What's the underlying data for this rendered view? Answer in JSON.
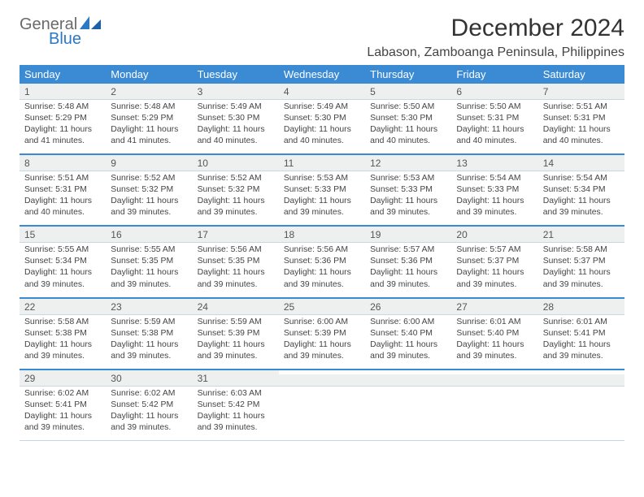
{
  "brand": {
    "word1": "General",
    "word2": "Blue"
  },
  "title": "December 2024",
  "location": "Labason, Zamboanga Peninsula, Philippines",
  "colors": {
    "header_bg": "#3b8bd4",
    "header_text": "#ffffff",
    "daynum_bg": "#eef0f0",
    "week_divider": "#3b8bd4",
    "body_text": "#444444",
    "logo_gray": "#6a6a6a",
    "logo_blue": "#2b78c5"
  },
  "weekdays": [
    "Sunday",
    "Monday",
    "Tuesday",
    "Wednesday",
    "Thursday",
    "Friday",
    "Saturday"
  ],
  "weeks": [
    [
      {
        "n": "1",
        "sr": "Sunrise: 5:48 AM",
        "ss": "Sunset: 5:29 PM",
        "d1": "Daylight: 11 hours",
        "d2": "and 41 minutes."
      },
      {
        "n": "2",
        "sr": "Sunrise: 5:48 AM",
        "ss": "Sunset: 5:29 PM",
        "d1": "Daylight: 11 hours",
        "d2": "and 41 minutes."
      },
      {
        "n": "3",
        "sr": "Sunrise: 5:49 AM",
        "ss": "Sunset: 5:30 PM",
        "d1": "Daylight: 11 hours",
        "d2": "and 40 minutes."
      },
      {
        "n": "4",
        "sr": "Sunrise: 5:49 AM",
        "ss": "Sunset: 5:30 PM",
        "d1": "Daylight: 11 hours",
        "d2": "and 40 minutes."
      },
      {
        "n": "5",
        "sr": "Sunrise: 5:50 AM",
        "ss": "Sunset: 5:30 PM",
        "d1": "Daylight: 11 hours",
        "d2": "and 40 minutes."
      },
      {
        "n": "6",
        "sr": "Sunrise: 5:50 AM",
        "ss": "Sunset: 5:31 PM",
        "d1": "Daylight: 11 hours",
        "d2": "and 40 minutes."
      },
      {
        "n": "7",
        "sr": "Sunrise: 5:51 AM",
        "ss": "Sunset: 5:31 PM",
        "d1": "Daylight: 11 hours",
        "d2": "and 40 minutes."
      }
    ],
    [
      {
        "n": "8",
        "sr": "Sunrise: 5:51 AM",
        "ss": "Sunset: 5:31 PM",
        "d1": "Daylight: 11 hours",
        "d2": "and 40 minutes."
      },
      {
        "n": "9",
        "sr": "Sunrise: 5:52 AM",
        "ss": "Sunset: 5:32 PM",
        "d1": "Daylight: 11 hours",
        "d2": "and 39 minutes."
      },
      {
        "n": "10",
        "sr": "Sunrise: 5:52 AM",
        "ss": "Sunset: 5:32 PM",
        "d1": "Daylight: 11 hours",
        "d2": "and 39 minutes."
      },
      {
        "n": "11",
        "sr": "Sunrise: 5:53 AM",
        "ss": "Sunset: 5:33 PM",
        "d1": "Daylight: 11 hours",
        "d2": "and 39 minutes."
      },
      {
        "n": "12",
        "sr": "Sunrise: 5:53 AM",
        "ss": "Sunset: 5:33 PM",
        "d1": "Daylight: 11 hours",
        "d2": "and 39 minutes."
      },
      {
        "n": "13",
        "sr": "Sunrise: 5:54 AM",
        "ss": "Sunset: 5:33 PM",
        "d1": "Daylight: 11 hours",
        "d2": "and 39 minutes."
      },
      {
        "n": "14",
        "sr": "Sunrise: 5:54 AM",
        "ss": "Sunset: 5:34 PM",
        "d1": "Daylight: 11 hours",
        "d2": "and 39 minutes."
      }
    ],
    [
      {
        "n": "15",
        "sr": "Sunrise: 5:55 AM",
        "ss": "Sunset: 5:34 PM",
        "d1": "Daylight: 11 hours",
        "d2": "and 39 minutes."
      },
      {
        "n": "16",
        "sr": "Sunrise: 5:55 AM",
        "ss": "Sunset: 5:35 PM",
        "d1": "Daylight: 11 hours",
        "d2": "and 39 minutes."
      },
      {
        "n": "17",
        "sr": "Sunrise: 5:56 AM",
        "ss": "Sunset: 5:35 PM",
        "d1": "Daylight: 11 hours",
        "d2": "and 39 minutes."
      },
      {
        "n": "18",
        "sr": "Sunrise: 5:56 AM",
        "ss": "Sunset: 5:36 PM",
        "d1": "Daylight: 11 hours",
        "d2": "and 39 minutes."
      },
      {
        "n": "19",
        "sr": "Sunrise: 5:57 AM",
        "ss": "Sunset: 5:36 PM",
        "d1": "Daylight: 11 hours",
        "d2": "and 39 minutes."
      },
      {
        "n": "20",
        "sr": "Sunrise: 5:57 AM",
        "ss": "Sunset: 5:37 PM",
        "d1": "Daylight: 11 hours",
        "d2": "and 39 minutes."
      },
      {
        "n": "21",
        "sr": "Sunrise: 5:58 AM",
        "ss": "Sunset: 5:37 PM",
        "d1": "Daylight: 11 hours",
        "d2": "and 39 minutes."
      }
    ],
    [
      {
        "n": "22",
        "sr": "Sunrise: 5:58 AM",
        "ss": "Sunset: 5:38 PM",
        "d1": "Daylight: 11 hours",
        "d2": "and 39 minutes."
      },
      {
        "n": "23",
        "sr": "Sunrise: 5:59 AM",
        "ss": "Sunset: 5:38 PM",
        "d1": "Daylight: 11 hours",
        "d2": "and 39 minutes."
      },
      {
        "n": "24",
        "sr": "Sunrise: 5:59 AM",
        "ss": "Sunset: 5:39 PM",
        "d1": "Daylight: 11 hours",
        "d2": "and 39 minutes."
      },
      {
        "n": "25",
        "sr": "Sunrise: 6:00 AM",
        "ss": "Sunset: 5:39 PM",
        "d1": "Daylight: 11 hours",
        "d2": "and 39 minutes."
      },
      {
        "n": "26",
        "sr": "Sunrise: 6:00 AM",
        "ss": "Sunset: 5:40 PM",
        "d1": "Daylight: 11 hours",
        "d2": "and 39 minutes."
      },
      {
        "n": "27",
        "sr": "Sunrise: 6:01 AM",
        "ss": "Sunset: 5:40 PM",
        "d1": "Daylight: 11 hours",
        "d2": "and 39 minutes."
      },
      {
        "n": "28",
        "sr": "Sunrise: 6:01 AM",
        "ss": "Sunset: 5:41 PM",
        "d1": "Daylight: 11 hours",
        "d2": "and 39 minutes."
      }
    ],
    [
      {
        "n": "29",
        "sr": "Sunrise: 6:02 AM",
        "ss": "Sunset: 5:41 PM",
        "d1": "Daylight: 11 hours",
        "d2": "and 39 minutes."
      },
      {
        "n": "30",
        "sr": "Sunrise: 6:02 AM",
        "ss": "Sunset: 5:42 PM",
        "d1": "Daylight: 11 hours",
        "d2": "and 39 minutes."
      },
      {
        "n": "31",
        "sr": "Sunrise: 6:03 AM",
        "ss": "Sunset: 5:42 PM",
        "d1": "Daylight: 11 hours",
        "d2": "and 39 minutes."
      },
      {
        "n": "",
        "sr": "",
        "ss": "",
        "d1": "",
        "d2": "",
        "empty": true
      },
      {
        "n": "",
        "sr": "",
        "ss": "",
        "d1": "",
        "d2": "",
        "empty": true
      },
      {
        "n": "",
        "sr": "",
        "ss": "",
        "d1": "",
        "d2": "",
        "empty": true
      },
      {
        "n": "",
        "sr": "",
        "ss": "",
        "d1": "",
        "d2": "",
        "empty": true
      }
    ]
  ]
}
